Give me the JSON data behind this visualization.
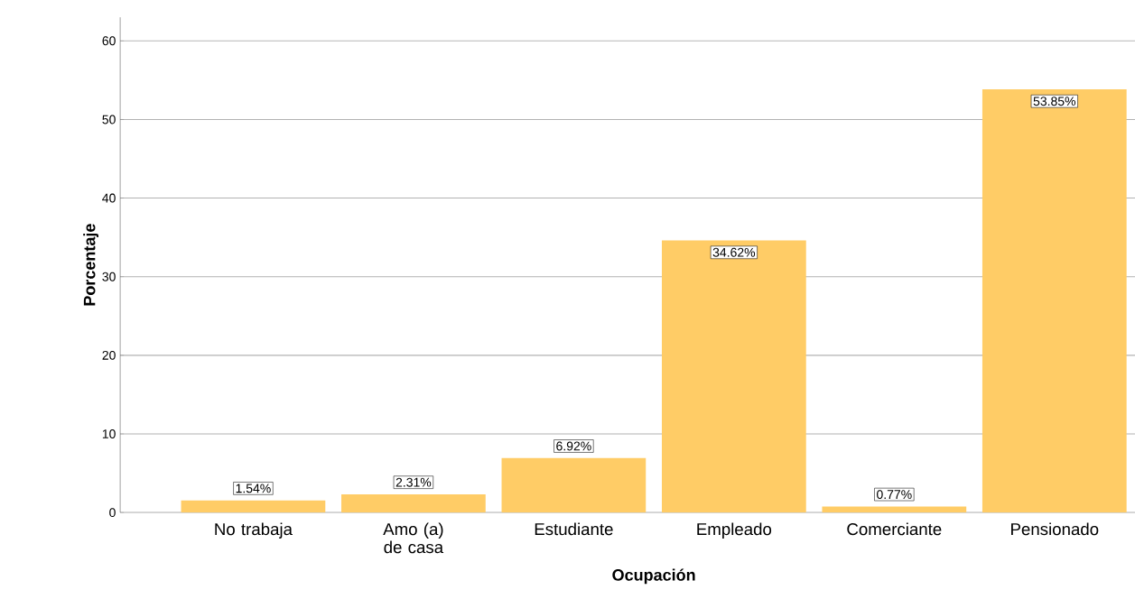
{
  "chart_data": {
    "type": "bar",
    "xlabel": "Ocupación",
    "ylabel": "Porcentaje",
    "categories": [
      "No trabaja",
      "Amo (a) de casa",
      "Estudiante",
      "Empleado",
      "Comerciante",
      "Pensionado"
    ],
    "values": [
      1.54,
      2.31,
      6.92,
      34.62,
      0.77,
      53.85
    ],
    "value_labels": [
      "1.54%",
      "2.31%",
      "6.92%",
      "34.62%",
      "0.77%",
      "53.85%"
    ],
    "color": "#ffcc66",
    "ylim": [
      0,
      63
    ],
    "yticks": [
      0,
      10,
      20,
      30,
      40,
      50,
      60
    ],
    "grid": "y"
  }
}
